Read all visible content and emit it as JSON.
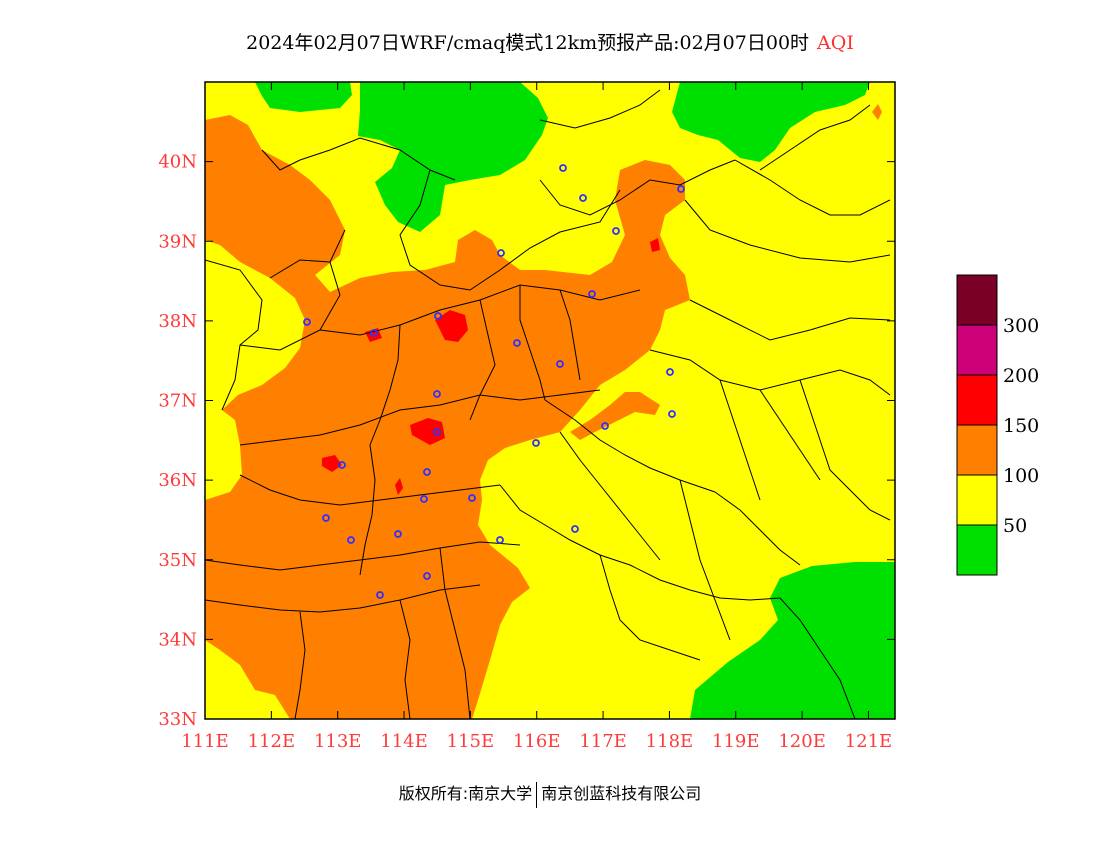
{
  "title": {
    "main": "2024年02月07日WRF/cmaq模式12km预报产品:02月07日00时",
    "aqi_label": "AQI"
  },
  "map": {
    "lon_range": [
      111,
      121.4
    ],
    "lat_range": [
      33,
      41
    ],
    "lon_ticks": [
      "111E",
      "112E",
      "113E",
      "114E",
      "115E",
      "116E",
      "117E",
      "118E",
      "119E",
      "120E",
      "121E"
    ],
    "lat_ticks": [
      "33N",
      "34N",
      "35N",
      "36N",
      "37N",
      "38N",
      "39N",
      "40N"
    ]
  },
  "legend": {
    "labels": [
      "50",
      "100",
      "150",
      "200",
      "300"
    ],
    "colors": [
      "#00e000",
      "#ffff00",
      "#ff7f00",
      "#ff0000",
      "#cc0077",
      "#7a0026"
    ]
  },
  "colors": {
    "good": "#00e000",
    "moderate": "#ffff00",
    "unhealthy_sensitive": "#ff7f00",
    "unhealthy": "#ff0000",
    "tick": "#ff3a3a",
    "station": "#3030ff"
  },
  "footer": {
    "left": "版权所有:南京大学",
    "right": "南京创蓝科技有限公司"
  }
}
